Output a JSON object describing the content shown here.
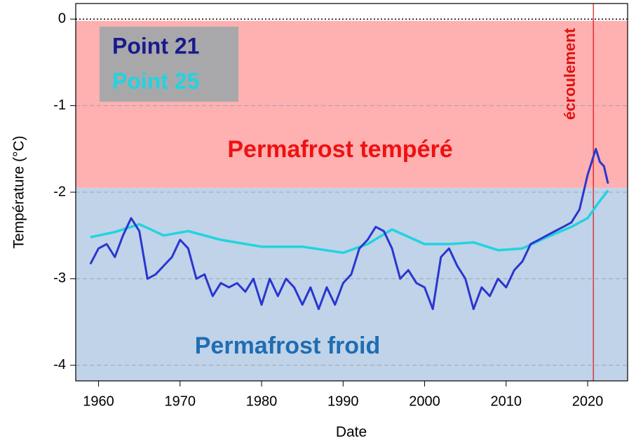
{
  "chart_data": {
    "type": "line",
    "x_label": "Date",
    "y_label": "Température (°C)",
    "xlim": [
      1957.2,
      2024.9
    ],
    "ylim": [
      -4.18,
      0.18
    ],
    "xticks": [
      1960,
      1970,
      1980,
      1990,
      2000,
      2010,
      2020
    ],
    "yticks": [
      0,
      -1,
      -2,
      -3,
      -4
    ],
    "grid": true,
    "zones": [
      {
        "label": "Permafrost tempéré",
        "range": [
          -1.95,
          -0.02
        ],
        "color": "#ffb0b0",
        "text_color": "#ee1111"
      },
      {
        "label": "Permafrost froid",
        "range": [
          -4.18,
          -1.95
        ],
        "color": "#c0d3e8",
        "text_color": "#1f6db3"
      }
    ],
    "vline": {
      "value": 2020.7,
      "label": "écroulement",
      "color": "#dd1111"
    },
    "series": [
      {
        "name": "Point 21",
        "color": "#2a36cf",
        "x": [
          1959,
          1960,
          1961,
          1962,
          1963,
          1964,
          1965,
          1966,
          1967,
          1968,
          1969,
          1970,
          1971,
          1972,
          1973,
          1974,
          1975,
          1976,
          1977,
          1978,
          1979,
          1980,
          1981,
          1982,
          1983,
          1984,
          1985,
          1986,
          1987,
          1988,
          1989,
          1990,
          1991,
          1992,
          1993,
          1994,
          1995,
          1996,
          1997,
          1998,
          1999,
          2000,
          2001,
          2002,
          2003,
          2004,
          2005,
          2006,
          2007,
          2008,
          2009,
          2010,
          2011,
          2012,
          2013,
          2014,
          2015,
          2016,
          2017,
          2018,
          2019,
          2020,
          2021,
          2021.5,
          2022,
          2022.5
        ],
        "values": [
          -2.83,
          -2.65,
          -2.6,
          -2.75,
          -2.5,
          -2.3,
          -2.45,
          -3.0,
          -2.95,
          -2.85,
          -2.75,
          -2.55,
          -2.65,
          -3.0,
          -2.95,
          -3.2,
          -3.05,
          -3.1,
          -3.05,
          -3.15,
          -3.0,
          -3.3,
          -3.0,
          -3.2,
          -3.0,
          -3.1,
          -3.3,
          -3.1,
          -3.35,
          -3.1,
          -3.3,
          -3.05,
          -2.95,
          -2.65,
          -2.55,
          -2.4,
          -2.45,
          -2.65,
          -3.0,
          -2.9,
          -3.05,
          -3.1,
          -3.35,
          -2.75,
          -2.65,
          -2.85,
          -3.0,
          -3.35,
          -3.1,
          -3.2,
          -3.0,
          -3.1,
          -2.9,
          -2.8,
          -2.6,
          -2.55,
          -2.5,
          -2.45,
          -2.4,
          -2.35,
          -2.2,
          -1.8,
          -1.5,
          -1.65,
          -1.7,
          -1.9
        ]
      },
      {
        "name": "Point 25",
        "color": "#22d3e0",
        "x": [
          1959,
          1962,
          1965,
          1968,
          1971,
          1975,
          1980,
          1985,
          1990,
          1993,
          1996,
          2000,
          2003,
          2006,
          2009,
          2012,
          2015,
          2018,
          2020,
          2021.5,
          2022.5
        ],
        "values": [
          -2.52,
          -2.46,
          -2.37,
          -2.5,
          -2.45,
          -2.55,
          -2.63,
          -2.63,
          -2.7,
          -2.6,
          -2.43,
          -2.6,
          -2.6,
          -2.58,
          -2.67,
          -2.65,
          -2.52,
          -2.4,
          -2.3,
          -2.1,
          -1.98
        ]
      }
    ]
  }
}
